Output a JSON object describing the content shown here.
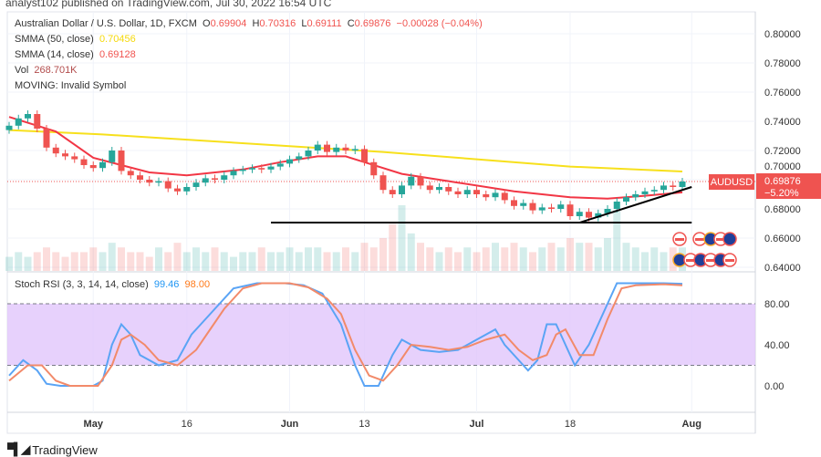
{
  "header": {
    "published": "analyst102 published on TradingView.com, Jul 30, 2022 16:54 UTC"
  },
  "legend": {
    "symbol": "Australian Dollar / U.S. Dollar, 1D, FXCM",
    "o_label": "O",
    "o": "0.69904",
    "h_label": "H",
    "h": "0.70316",
    "l_label": "L",
    "l": "0.69111",
    "c_label": "C",
    "c": "0.69876",
    "change": "−0.00028 (−0.04%)",
    "smma50_label": "SMMA (50, close)",
    "smma50": "0.70456",
    "smma14_label": "SMMA (14, close)",
    "smma14": "0.69128",
    "vol_label": "Vol",
    "vol": "268.701K",
    "moving": "MOVING: Invalid Symbol",
    "stoch_label": "Stoch RSI (3, 3, 14, 14, close)",
    "stoch_k": "99.46",
    "stoch_d": "98.00"
  },
  "price_tag": {
    "symbol": "AUDUSD",
    "price": "0.69876",
    "pct": "−5.20%"
  },
  "footer": {
    "brand": "TradingView",
    "logo": "17"
  },
  "colors": {
    "up": "#26a69a",
    "down": "#ef5350",
    "smma50": "#f7e01c",
    "smma14": "#f23645",
    "k": "#5aa4f5",
    "d": "#f28a6a",
    "band": "#e1c6fb"
  },
  "chart_data": {
    "type": "candlestick",
    "price_axis": {
      "ylim": [
        0.64,
        0.8
      ],
      "ticks": [
        "0.80000",
        "0.78000",
        "0.76000",
        "0.74000",
        "0.72000",
        "0.70000",
        "0.68000",
        "0.66000",
        "0.64000"
      ]
    },
    "time_axis": [
      {
        "label": "May",
        "i": 9
      },
      {
        "label": "16",
        "i": 19
      },
      {
        "label": "Jun",
        "i": 30
      },
      {
        "label": "13",
        "i": 38
      },
      {
        "label": "Jul",
        "i": 50
      },
      {
        "label": "18",
        "i": 60
      },
      {
        "label": "Aug",
        "i": 73
      }
    ],
    "closes": [
      0.737,
      0.742,
      0.745,
      0.735,
      0.722,
      0.718,
      0.716,
      0.714,
      0.71,
      0.708,
      0.712,
      0.72,
      0.706,
      0.703,
      0.7,
      0.698,
      0.699,
      0.694,
      0.692,
      0.695,
      0.698,
      0.701,
      0.7,
      0.703,
      0.706,
      0.707,
      0.708,
      0.707,
      0.709,
      0.711,
      0.714,
      0.716,
      0.72,
      0.724,
      0.719,
      0.722,
      0.72,
      0.721,
      0.712,
      0.703,
      0.693,
      0.69,
      0.696,
      0.702,
      0.696,
      0.693,
      0.695,
      0.692,
      0.69,
      0.693,
      0.69,
      0.688,
      0.691,
      0.686,
      0.682,
      0.684,
      0.679,
      0.681,
      0.68,
      0.683,
      0.675,
      0.678,
      0.674,
      0.677,
      0.68,
      0.685,
      0.688,
      0.69,
      0.692,
      0.693,
      0.696,
      0.695,
      0.69876
    ],
    "first_open": 0.734,
    "volume": [
      3,
      4,
      3,
      4,
      5,
      4,
      3,
      4,
      4,
      5,
      4,
      6,
      5,
      4,
      4,
      3,
      5,
      4,
      6,
      4,
      5,
      4,
      5,
      4,
      3,
      4,
      4,
      5,
      4,
      4,
      5,
      4,
      5,
      5,
      4,
      4,
      5,
      4,
      6,
      5,
      7,
      10,
      14,
      8,
      6,
      5,
      4,
      5,
      4,
      5,
      4,
      5,
      6,
      5,
      6,
      5,
      4,
      5,
      6,
      5,
      7,
      6,
      6,
      5,
      7,
      13,
      6,
      5,
      4,
      5,
      4,
      5,
      5
    ],
    "smma50": [
      [
        0,
        0.734
      ],
      [
        10,
        0.731
      ],
      [
        20,
        0.727
      ],
      [
        30,
        0.723
      ],
      [
        40,
        0.719
      ],
      [
        50,
        0.714
      ],
      [
        60,
        0.709
      ],
      [
        72,
        0.7056
      ]
    ],
    "smma14": [
      [
        0,
        0.743
      ],
      [
        5,
        0.733
      ],
      [
        9,
        0.715
      ],
      [
        15,
        0.705
      ],
      [
        19,
        0.703
      ],
      [
        25,
        0.707
      ],
      [
        29,
        0.712
      ],
      [
        33,
        0.716
      ],
      [
        36,
        0.716
      ],
      [
        38,
        0.712
      ],
      [
        42,
        0.704
      ],
      [
        48,
        0.698
      ],
      [
        54,
        0.692
      ],
      [
        60,
        0.688
      ],
      [
        64,
        0.687
      ],
      [
        68,
        0.689
      ],
      [
        72,
        0.6913
      ]
    ],
    "support_line": {
      "price": 0.6706,
      "from_i": 28,
      "to_i": 73
    },
    "trend_line": {
      "from": [
        61,
        0.6706
      ],
      "to": [
        73,
        0.695
      ]
    },
    "stoch": {
      "levels": [
        "80.00",
        "40.00",
        "0.00"
      ],
      "band": [
        20,
        80
      ],
      "k": [
        [
          0,
          10
        ],
        [
          1.5,
          25
        ],
        [
          3,
          15
        ],
        [
          4,
          2
        ],
        [
          5.5,
          0
        ],
        [
          9,
          0
        ],
        [
          10,
          5
        ],
        [
          11,
          40
        ],
        [
          12,
          60
        ],
        [
          13,
          50
        ],
        [
          14,
          30
        ],
        [
          16,
          20
        ],
        [
          18,
          25
        ],
        [
          19.5,
          50
        ],
        [
          20.5,
          60
        ],
        [
          22.5,
          80
        ],
        [
          24,
          95
        ],
        [
          26.5,
          100
        ],
        [
          29.5,
          100
        ],
        [
          31.5,
          98
        ],
        [
          33.5,
          90
        ],
        [
          35.5,
          60
        ],
        [
          37,
          20
        ],
        [
          38,
          0
        ],
        [
          39.5,
          0
        ],
        [
          41,
          30
        ],
        [
          42,
          45
        ],
        [
          44,
          35
        ],
        [
          46,
          33
        ],
        [
          48,
          35
        ],
        [
          50,
          45
        ],
        [
          52,
          55
        ],
        [
          53,
          40
        ],
        [
          54.5,
          25
        ],
        [
          55.5,
          15
        ],
        [
          56.5,
          25
        ],
        [
          57.5,
          60
        ],
        [
          58.5,
          60
        ],
        [
          59.5,
          40
        ],
        [
          60.5,
          20
        ],
        [
          62,
          40
        ],
        [
          64,
          80
        ],
        [
          65,
          100
        ],
        [
          67,
          100
        ],
        [
          70,
          100
        ],
        [
          72,
          99.46
        ]
      ],
      "d": [
        [
          0,
          5
        ],
        [
          2,
          20
        ],
        [
          3.5,
          20
        ],
        [
          5,
          5
        ],
        [
          6.5,
          0
        ],
        [
          9.5,
          0
        ],
        [
          11,
          20
        ],
        [
          12,
          45
        ],
        [
          13,
          50
        ],
        [
          14.5,
          40
        ],
        [
          16,
          25
        ],
        [
          18,
          20
        ],
        [
          20,
          35
        ],
        [
          21.5,
          55
        ],
        [
          23,
          75
        ],
        [
          25,
          95
        ],
        [
          27,
          100
        ],
        [
          30,
          100
        ],
        [
          32,
          96
        ],
        [
          34,
          85
        ],
        [
          35.5,
          70
        ],
        [
          37,
          35
        ],
        [
          38.5,
          10
        ],
        [
          40,
          5
        ],
        [
          41.5,
          20
        ],
        [
          43,
          40
        ],
        [
          45,
          38
        ],
        [
          47,
          35
        ],
        [
          49,
          38
        ],
        [
          51,
          45
        ],
        [
          53,
          50
        ],
        [
          54.5,
          35
        ],
        [
          56,
          25
        ],
        [
          57.5,
          30
        ],
        [
          58.5,
          50
        ],
        [
          59.5,
          55
        ],
        [
          61,
          30
        ],
        [
          62.5,
          30
        ],
        [
          64,
          65
        ],
        [
          65.5,
          95
        ],
        [
          67,
          98
        ],
        [
          70,
          99
        ],
        [
          72,
          98
        ]
      ]
    }
  }
}
